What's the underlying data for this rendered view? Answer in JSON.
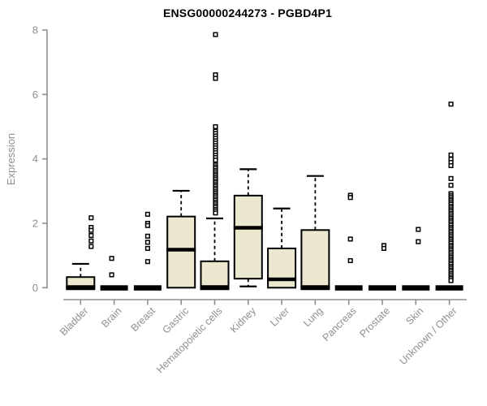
{
  "title": "ENSG00000244273 - PGBD4P1",
  "chart_data": {
    "type": "boxplot",
    "title": "ENSG00000244273 - PGBD4P1",
    "xlabel": "",
    "ylabel": "Expression",
    "ylim": [
      0,
      8
    ],
    "yticks": [
      "0",
      "2",
      "4",
      "6",
      "8"
    ],
    "grid": false,
    "legend": "none",
    "box_fill_color": "#ECE8CF",
    "box_border_color": "#000000",
    "axis_color": "#8F8F8F",
    "outlier_fill_color": "#FFFFFF",
    "categories": [
      "Bladder",
      "Brain",
      "Breast",
      "Gastric",
      "Hematopoietic cells",
      "Kidney",
      "Liver",
      "Lung",
      "Pancreas",
      "Prostate",
      "Skin",
      "Unknown / Other"
    ],
    "series": [
      {
        "category": "Bladder",
        "low": 0,
        "q1": 0,
        "median": 0,
        "q3": 0.33,
        "high": 0.74,
        "outliers": [
          2.17,
          1.87,
          1.78,
          1.62,
          1.45,
          1.28
        ],
        "outlier_x_offset": 13
      },
      {
        "category": "Brain",
        "low": 0,
        "q1": 0,
        "median": 0,
        "q3": 0,
        "high": 0,
        "outliers": [
          0.91,
          0.4
        ],
        "outlier_x_offset": -3
      },
      {
        "category": "Breast",
        "low": 0,
        "q1": 0,
        "median": 0,
        "q3": 0,
        "high": 0,
        "outliers": [
          2.28,
          2.0,
          1.93,
          1.6,
          1.41,
          1.22,
          0.81
        ],
        "outlier_x_offset": 0
      },
      {
        "category": "Gastric",
        "low": 0,
        "q1": 0,
        "median": 1.18,
        "q3": 2.21,
        "high": 3.01,
        "outliers": [],
        "outlier_x_offset": 0
      },
      {
        "category": "Hematopoietic cells",
        "low": 0,
        "q1": 0,
        "median": 0,
        "q3": 0.82,
        "high": 2.15,
        "outliers": [
          7.86,
          6.61,
          6.5,
          5.0,
          4.86,
          4.79,
          4.71,
          4.64,
          4.56,
          4.49,
          4.41,
          4.34,
          4.26,
          4.19,
          4.11,
          4.04,
          3.96,
          3.81,
          3.75,
          3.7,
          3.64,
          3.59,
          3.53,
          3.48,
          3.42,
          3.37,
          3.31,
          3.26,
          3.2,
          3.15,
          3.09,
          3.04,
          2.98,
          2.93,
          2.87,
          2.82,
          2.76,
          2.71,
          2.65,
          2.6,
          2.54,
          2.49,
          2.43,
          2.38,
          2.32
        ],
        "outlier_x_offset": 1
      },
      {
        "category": "Kidney",
        "low": 0.04,
        "q1": 0.28,
        "median": 1.86,
        "q3": 2.86,
        "high": 3.68,
        "outliers": [],
        "outlier_x_offset": 0
      },
      {
        "category": "Liver",
        "low": 0,
        "q1": 0,
        "median": 0.26,
        "q3": 1.22,
        "high": 2.46,
        "outliers": [],
        "outlier_x_offset": 0
      },
      {
        "category": "Lung",
        "low": 0,
        "q1": 0,
        "median": 0,
        "q3": 1.79,
        "high": 3.47,
        "outliers": [],
        "outlier_x_offset": 0
      },
      {
        "category": "Pancreas",
        "low": 0,
        "q1": 0,
        "median": 0,
        "q3": 0,
        "high": 0,
        "outliers": [
          2.87,
          2.8,
          1.51,
          0.84
        ],
        "outlier_x_offset": 2
      },
      {
        "category": "Prostate",
        "low": 0,
        "q1": 0,
        "median": 0,
        "q3": 0,
        "high": 0,
        "outliers": [
          1.31,
          1.22
        ],
        "outlier_x_offset": 2
      },
      {
        "category": "Skin",
        "low": 0,
        "q1": 0,
        "median": 0,
        "q3": 0,
        "high": 0,
        "outliers": [
          1.81,
          1.43
        ],
        "outlier_x_offset": 3
      },
      {
        "category": "Unknown / Other",
        "low": 0,
        "q1": 0,
        "median": 0,
        "q3": 0,
        "high": 0,
        "outliers": [
          5.7,
          4.12,
          3.99,
          3.89,
          3.79,
          3.39,
          3.18,
          2.92,
          2.86,
          2.81,
          2.75,
          2.7,
          2.64,
          2.59,
          2.53,
          2.48,
          2.42,
          2.37,
          2.31,
          2.26,
          2.2,
          2.15,
          2.09,
          2.04,
          1.98,
          1.93,
          1.87,
          1.82,
          1.76,
          1.71,
          1.65,
          1.6,
          1.54,
          1.49,
          1.43,
          1.38,
          1.32,
          1.27,
          1.21,
          1.16,
          1.1,
          1.05,
          0.99,
          0.94,
          0.88,
          0.83,
          0.77,
          0.72,
          0.66,
          0.61,
          0.55,
          0.5,
          0.44,
          0.39,
          0.33,
          0.28,
          0.22
        ],
        "outlier_x_offset": 2
      }
    ]
  }
}
